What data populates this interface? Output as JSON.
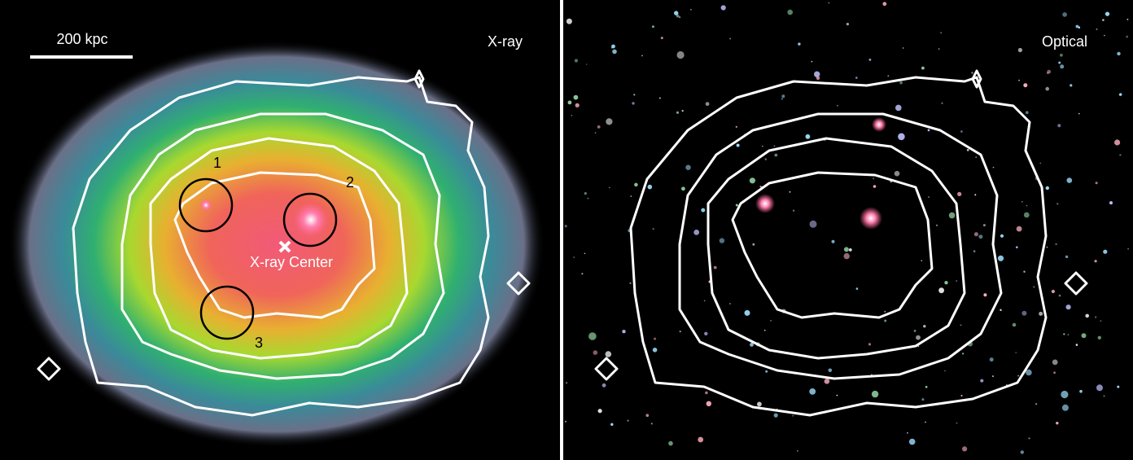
{
  "left_panel": {
    "label": "X-ray",
    "scale_bar": "200 kpc",
    "regions": [
      "1",
      "2",
      "3"
    ],
    "center_label": "X-ray Center"
  },
  "right_panel": {
    "label": "Optical"
  }
}
